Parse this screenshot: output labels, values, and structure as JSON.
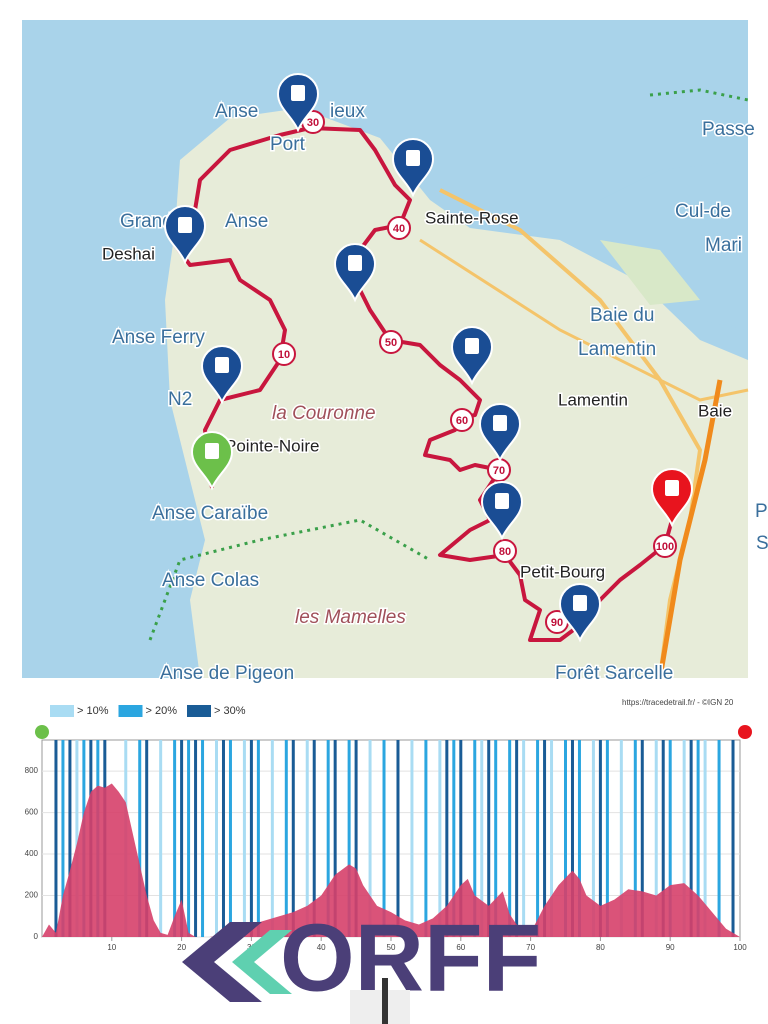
{
  "map": {
    "places": [
      "Anse",
      "ieux",
      "Port",
      "Grand",
      "Anse",
      "Deshai",
      "Anse Ferry",
      "N2",
      "la Couronne",
      "Pointe-Noire",
      "Anse Caraïbe",
      "Anse Colas",
      "les Mamelles",
      "Anse de Pigeon",
      "Sainte-Rose",
      "Baie du",
      "Lamentin",
      "Lamentin",
      "Baie",
      "Petit-Bourg",
      "Passe",
      "Cul-de",
      "Mari",
      "Pe",
      "S",
      "Forêt Sarcelle"
    ],
    "km_markers": [
      10,
      30,
      40,
      50,
      60,
      70,
      80,
      90,
      100
    ]
  },
  "chart_data": {
    "type": "area",
    "credit": "https://tracedetrail.fr/ - ©IGN 20",
    "profile": {
      "color": "#d6406a",
      "x": [
        0,
        1,
        2,
        3,
        4,
        5,
        6,
        7,
        8,
        9,
        10,
        11,
        12,
        13,
        14,
        15,
        16,
        17,
        18,
        19,
        20,
        21,
        22,
        24,
        26,
        28,
        30,
        32,
        34,
        36,
        38,
        40,
        42,
        44,
        45,
        46,
        48,
        50,
        52,
        54,
        56,
        58,
        60,
        61,
        62,
        64,
        66,
        67,
        68,
        70,
        72,
        74,
        76,
        77,
        78,
        80,
        82,
        84,
        86,
        88,
        90,
        92,
        94,
        96,
        98,
        100
      ],
      "values": [
        0,
        60,
        20,
        200,
        320,
        450,
        600,
        700,
        730,
        720,
        740,
        700,
        650,
        500,
        350,
        200,
        80,
        20,
        10,
        100,
        180,
        20,
        0,
        0,
        10,
        40,
        60,
        80,
        100,
        120,
        150,
        200,
        300,
        350,
        330,
        250,
        150,
        120,
        80,
        60,
        90,
        150,
        250,
        280,
        200,
        150,
        220,
        110,
        60,
        20,
        150,
        250,
        320,
        280,
        200,
        150,
        180,
        230,
        220,
        200,
        250,
        260,
        200,
        120,
        40,
        0
      ]
    },
    "series": [
      {
        "name": "> 10%",
        "color": "#a9dcf3",
        "x": [
          5,
          12,
          17,
          25,
          29,
          33,
          38,
          47,
          53,
          57,
          63,
          69,
          73,
          79,
          83,
          88,
          92,
          95
        ]
      },
      {
        "name": "> 20%",
        "color": "#2ba6e0",
        "x": [
          3,
          6,
          8,
          14,
          19,
          21,
          23,
          27,
          31,
          35,
          41,
          44,
          49,
          55,
          59,
          62,
          65,
          67,
          71,
          75,
          77,
          81,
          85,
          90,
          94,
          97
        ]
      },
      {
        "name": "> 30%",
        "color": "#1a5c96",
        "x": [
          2,
          4,
          7,
          9,
          15,
          20,
          22,
          26,
          30,
          36,
          39,
          42,
          45,
          51,
          58,
          60,
          64,
          68,
          72,
          76,
          80,
          86,
          89,
          93,
          99
        ]
      }
    ],
    "xlim": [
      0,
      100
    ],
    "ylim": [
      0,
      950
    ],
    "xticks": [
      10,
      20,
      30,
      40,
      50,
      60,
      70,
      80,
      90,
      100
    ],
    "yticks": [
      0,
      200,
      400,
      600,
      800
    ]
  },
  "logo": {
    "text": "ORFF"
  }
}
